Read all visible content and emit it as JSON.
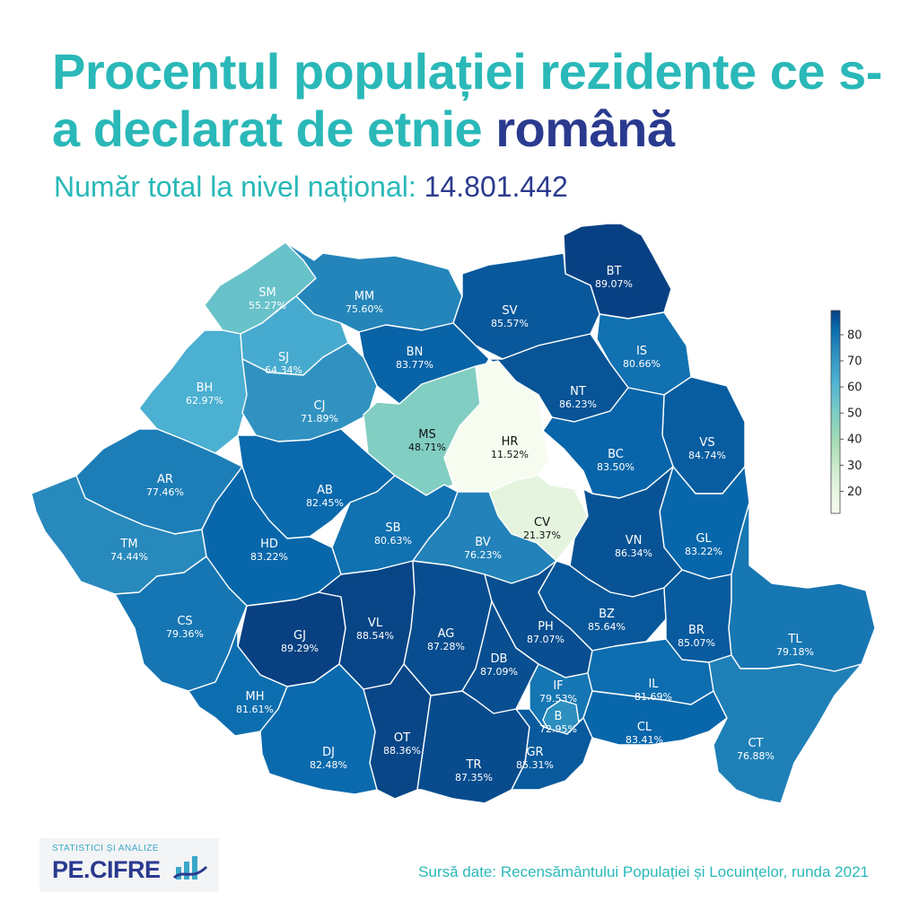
{
  "header": {
    "title_main": "Procentul populației rezidente ce s-a declarat de etnie ",
    "title_accent": "română",
    "subtitle_label": "Număr total la nivel național: ",
    "subtitle_value": "14.801.442"
  },
  "colors": {
    "title": "#2ab8b8",
    "accent": "#2a3a8f"
  },
  "colorbar": {
    "ticks": [
      "20",
      "30",
      "40",
      "50",
      "60",
      "70",
      "80"
    ],
    "min": 11.52,
    "max": 89.29
  },
  "counties": [
    {
      "code": "SM",
      "value": "55.27%"
    },
    {
      "code": "MM",
      "value": "75.60%"
    },
    {
      "code": "BT",
      "value": "89.07%"
    },
    {
      "code": "SV",
      "value": "85.57%"
    },
    {
      "code": "SJ",
      "value": "64.34%"
    },
    {
      "code": "BN",
      "value": "83.77%"
    },
    {
      "code": "IS",
      "value": "80.66%"
    },
    {
      "code": "BH",
      "value": "62.97%"
    },
    {
      "code": "CJ",
      "value": "71.89%"
    },
    {
      "code": "NT",
      "value": "86.23%"
    },
    {
      "code": "MS",
      "value": "48.71%"
    },
    {
      "code": "HR",
      "value": "11.52%"
    },
    {
      "code": "VS",
      "value": "84.74%"
    },
    {
      "code": "BC",
      "value": "83.50%"
    },
    {
      "code": "AR",
      "value": "77.46%"
    },
    {
      "code": "AB",
      "value": "82.45%"
    },
    {
      "code": "CV",
      "value": "21.37%"
    },
    {
      "code": "GL",
      "value": "83.22%"
    },
    {
      "code": "SB",
      "value": "80.63%"
    },
    {
      "code": "TM",
      "value": "74.44%"
    },
    {
      "code": "HD",
      "value": "83.22%"
    },
    {
      "code": "BV",
      "value": "76.23%"
    },
    {
      "code": "VN",
      "value": "86.34%"
    },
    {
      "code": "BZ",
      "value": "85.64%"
    },
    {
      "code": "CS",
      "value": "79.36%"
    },
    {
      "code": "GJ",
      "value": "89.29%"
    },
    {
      "code": "VL",
      "value": "88.54%"
    },
    {
      "code": "AG",
      "value": "87.28%"
    },
    {
      "code": "PH",
      "value": "87.07%"
    },
    {
      "code": "BR",
      "value": "85.07%"
    },
    {
      "code": "TL",
      "value": "79.18%"
    },
    {
      "code": "DB",
      "value": "87.09%"
    },
    {
      "code": "IF",
      "value": "79.53%"
    },
    {
      "code": "IL",
      "value": "81.69%"
    },
    {
      "code": "B",
      "value": "72.95%"
    },
    {
      "code": "MH",
      "value": "81.61%"
    },
    {
      "code": "CL",
      "value": "83.41%"
    },
    {
      "code": "CT",
      "value": "76.88%"
    },
    {
      "code": "OT",
      "value": "88.36%"
    },
    {
      "code": "TR",
      "value": "87.35%"
    },
    {
      "code": "GR",
      "value": "85.31%"
    },
    {
      "code": "DJ",
      "value": "82.48%"
    }
  ],
  "logo": {
    "tagline": "STATISTICI ȘI ANALIZE",
    "name": "PE.CIFRE"
  },
  "source": "Sursă date: Recensământului Populației și Locuințelor, runda 2021"
}
